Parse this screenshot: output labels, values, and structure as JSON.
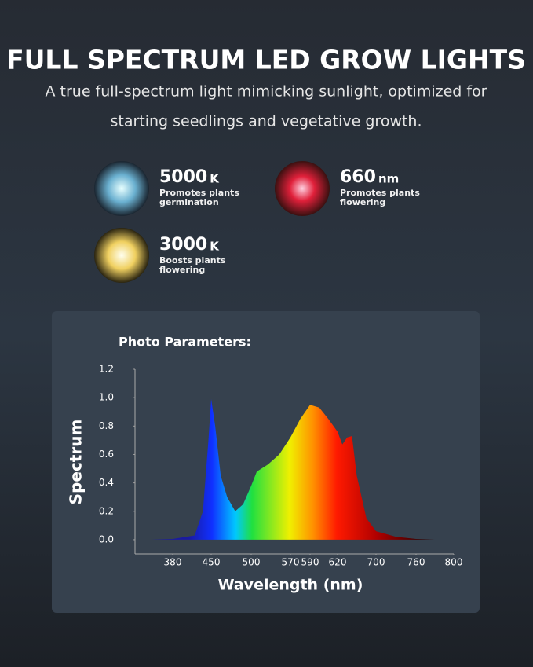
{
  "header": {
    "title": "FULL SPECTRUM LED GROW LIGHTS",
    "subtitle_lines": [
      "A true full-spectrum light mimicking sunlight, optimized for",
      "starting seedlings and vegetative growth."
    ]
  },
  "features": [
    {
      "value": "5000",
      "unit": "K",
      "lines": [
        "Promotes plants",
        "germination"
      ]
    },
    {
      "value": "660",
      "unit": "nm",
      "lines": [
        "Promotes plants",
        "flowering"
      ]
    },
    {
      "value": "3000",
      "unit": "K",
      "lines": [
        "Boosts plants",
        "flowering"
      ]
    }
  ],
  "chart_data": {
    "type": "area",
    "title": "Photo Parameters:",
    "x_label": "Wavelength (nm)",
    "y_label": "Spectrum",
    "x": [
      340,
      380,
      420,
      435,
      445,
      450,
      455,
      462,
      470,
      480,
      490,
      500,
      510,
      530,
      550,
      570,
      580,
      590,
      600,
      610,
      620,
      630,
      640,
      650,
      660,
      680,
      700,
      730,
      760,
      780
    ],
    "values": [
      0,
      0.005,
      0.03,
      0.2,
      0.7,
      0.99,
      0.8,
      0.45,
      0.3,
      0.2,
      0.25,
      0.38,
      0.48,
      0.53,
      0.6,
      0.72,
      0.85,
      0.95,
      0.93,
      0.85,
      0.76,
      0.67,
      0.72,
      0.73,
      0.45,
      0.15,
      0.06,
      0.02,
      0.005,
      0
    ],
    "ylim": [
      -0.1,
      1.2
    ],
    "yticks": [
      {
        "value": 0,
        "label": "0.0"
      },
      0.2,
      0.4,
      0.6,
      0.8,
      {
        "value": 1,
        "label": "1.0"
      },
      1.2
    ],
    "xticks": [
      380,
      450,
      500,
      570,
      590,
      620,
      700,
      760,
      800
    ]
  }
}
